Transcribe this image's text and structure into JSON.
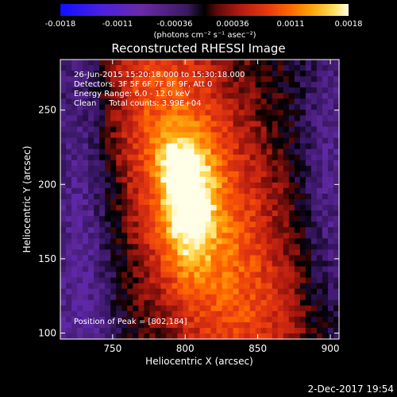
{
  "colorbar": {
    "ticks": [
      "-0.0018",
      "-0.0011",
      "-0.00036",
      "0.00036",
      "0.0011",
      "0.0018"
    ],
    "unit_label": "(photons cm⁻² s⁻¹ asec⁻²)"
  },
  "chart_data": {
    "type": "heatmap",
    "title": "Reconstructed RHESSI Image",
    "xlabel": "Heliocentric X (arcsec)",
    "ylabel": "Heliocentric Y (arcsec)",
    "xlim": [
      714,
      906
    ],
    "ylim": [
      96,
      284
    ],
    "xticks": [
      750,
      800,
      850,
      900
    ],
    "yticks": [
      100,
      150,
      200,
      250
    ],
    "value_range": [
      -0.0018,
      0.0018
    ],
    "peak": {
      "x": 802,
      "y": 184
    },
    "annotations": [
      "26-Jun-2015 15:20:18.000 to 15:30:18.000",
      "Detectors: 3F 5F 6F 7F 8F 9F, Att 0",
      "Energy Range: 6.0 - 12.0 keV",
      "Clean     Total counts: 3.99E+04"
    ],
    "peak_label": "Position of Peak = [802,184]"
  },
  "footer": {
    "date": "2-Dec-2017 19:54"
  }
}
